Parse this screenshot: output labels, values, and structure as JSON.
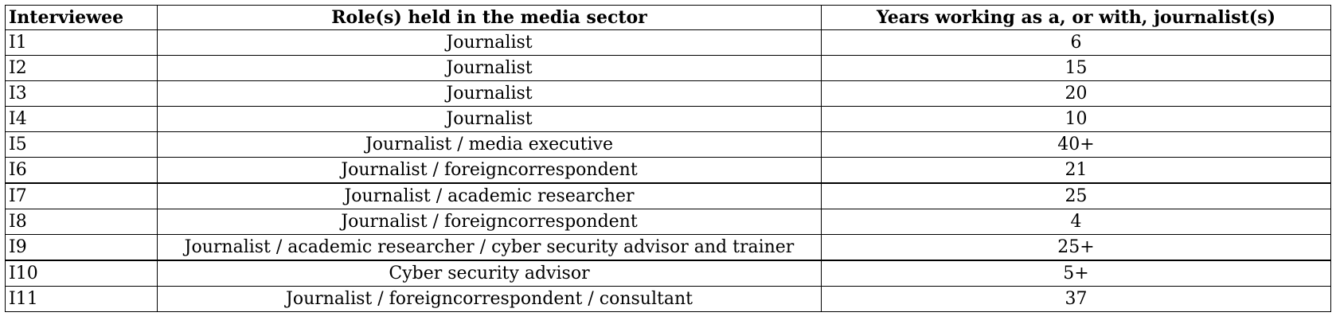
{
  "table": {
    "headers": [
      "Interviewee",
      "Role(s) held in the media sector",
      "Years working as a, or with, journalist(s)"
    ],
    "rows": [
      [
        "I1",
        "Journalist",
        "6"
      ],
      [
        "I2",
        "Journalist",
        "15"
      ],
      [
        "I3",
        "Journalist",
        "20"
      ],
      [
        "I4",
        "Journalist",
        "10"
      ],
      [
        "I5",
        "Journalist / media executive",
        "40+"
      ],
      [
        "I6",
        "Journalist / foreigncorrespondent",
        "21"
      ],
      [
        "I7",
        "Journalist / academic researcher",
        "25"
      ],
      [
        "I8",
        "Journalist / foreigncorrespondent",
        "4"
      ],
      [
        "I9",
        "Journalist / academic researcher / cyber security advisor and trainer",
        "25+"
      ],
      [
        "I10",
        "Cyber security advisor",
        "5+"
      ],
      [
        "I11",
        "Journalist / foreigncorrespondent / consultant",
        "37"
      ]
    ]
  }
}
